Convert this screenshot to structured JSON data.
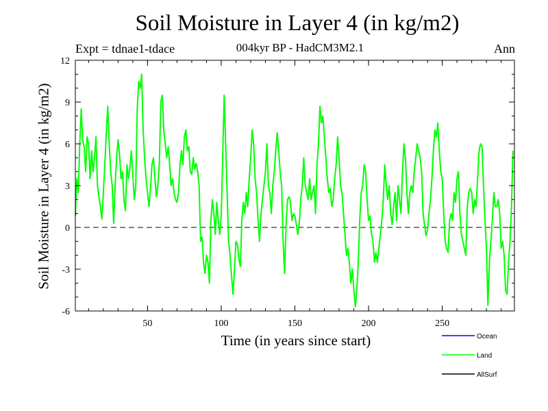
{
  "chart_data": {
    "type": "line",
    "title": "Soil Moisture in Layer 4 (in kg/m2)",
    "subtitle": "004kyr BP - HadCM3M2.1",
    "experiment": "Expt = tdnae1-tdace",
    "period": "Ann",
    "xlabel": "Time (in years since start)",
    "ylabel": "Soil Moisture in Layer 4 (in kg/m2)",
    "xlim": [
      1,
      299
    ],
    "ylim": [
      -6,
      12
    ],
    "xticks": [
      50,
      100,
      150,
      200,
      250
    ],
    "xtick_labels": [
      "50",
      "100",
      "150",
      "200",
      "250"
    ],
    "yticks": [
      -6,
      -3,
      0,
      3,
      6,
      9,
      12
    ],
    "ytick_labels": [
      "-6",
      "-3",
      "0",
      "3",
      "6",
      "9",
      "12"
    ],
    "reference_line": 0,
    "legend": [
      {
        "name": "Ocean",
        "color": "#0000ff"
      },
      {
        "name": "Land",
        "color": "#00ff00"
      },
      {
        "name": "AllSurf",
        "color": "#000000"
      }
    ],
    "series": [
      {
        "name": "Land",
        "color": "#00ff00",
        "x_start": 1,
        "x_step": 1,
        "values": [
          0.8,
          3.5,
          2.5,
          6.0,
          8.5,
          6.2,
          5.8,
          4.0,
          6.5,
          6.0,
          3.5,
          5.5,
          4.0,
          5.0,
          6.5,
          3.0,
          2.2,
          1.5,
          0.6,
          2.5,
          4.5,
          6.8,
          8.7,
          6.0,
          4.0,
          3.0,
          0.3,
          3.0,
          5.0,
          6.3,
          5.2,
          3.5,
          4.0,
          2.0,
          1.2,
          4.5,
          3.5,
          4.2,
          5.5,
          3.8,
          2.0,
          3.0,
          8.5,
          10.5,
          10.0,
          11.0,
          7.0,
          5.0,
          3.5,
          2.5,
          1.5,
          2.8,
          4.5,
          5.0,
          3.5,
          2.2,
          3.0,
          4.5,
          9.0,
          9.5,
          7.0,
          6.0,
          5.0,
          5.8,
          4.5,
          3.0,
          3.5,
          2.5,
          2.0,
          1.8,
          2.5,
          4.5,
          5.5,
          4.5,
          6.5,
          7.0,
          5.5,
          5.8,
          4.0,
          3.8,
          5.0,
          4.2,
          4.6,
          4.0,
          3.0,
          -1.0,
          -0.7,
          -2.5,
          -3.3,
          -2.0,
          -2.5,
          -4.0,
          0.5,
          2.0,
          1.0,
          -0.5,
          1.8,
          0.5,
          -0.5,
          0.8,
          5.0,
          9.5,
          6.0,
          2.5,
          -1.0,
          -2.0,
          -3.5,
          -4.8,
          -3.0,
          -1.0,
          -1.2,
          -2.3,
          -2.8,
          0.5,
          1.8,
          1.0,
          2.5,
          1.5,
          3.5,
          5.0,
          7.0,
          6.0,
          3.5,
          2.5,
          0.5,
          -1.0,
          1.0,
          2.0,
          3.0,
          4.0,
          6.0,
          3.0,
          2.5,
          1.0,
          3.0,
          4.0,
          5.5,
          6.8,
          5.5,
          4.0,
          3.0,
          -1.0,
          -3.3,
          0.2,
          2.0,
          2.2,
          1.8,
          0.5,
          1.0,
          0.8,
          0.2,
          -0.5,
          0.3,
          2.0,
          3.0,
          5.0,
          3.0,
          2.5,
          2.0,
          3.5,
          2.0,
          2.5,
          3.0,
          1.0,
          4.5,
          6.0,
          8.7,
          7.5,
          8.0,
          6.5,
          5.0,
          3.5,
          2.5,
          2.8,
          1.5,
          2.0,
          3.5,
          4.5,
          6.5,
          5.0,
          3.0,
          2.5,
          1.0,
          -0.5,
          -2.0,
          -1.5,
          -2.6,
          -4.0,
          -3.0,
          -4.5,
          -5.7,
          -4.5,
          -2.5,
          0.5,
          2.5,
          3.0,
          4.5,
          4.0,
          2.0,
          0.5,
          0.8,
          -0.5,
          -1.0,
          -2.5,
          -1.8,
          -2.5,
          -1.5,
          -0.5,
          0.5,
          2.0,
          4.5,
          3.0,
          2.0,
          3.0,
          1.0,
          0.2,
          1.5,
          2.5,
          0.5,
          3.0,
          2.0,
          1.0,
          4.0,
          6.0,
          5.0,
          2.5,
          1.0,
          2.5,
          3.0,
          2.5,
          4.0,
          5.0,
          6.0,
          5.5,
          5.0,
          4.0,
          1.0,
          0.2,
          -0.6,
          -0.2,
          1.0,
          2.0,
          3.5,
          5.5,
          7.0,
          6.5,
          7.5,
          5.5,
          4.0,
          3.5,
          1.0,
          -1.0,
          -1.5,
          -1.8,
          0.5,
          1.0,
          0.5,
          2.5,
          1.8,
          3.5,
          4.0,
          1.0,
          -0.5,
          -1.0,
          -1.5,
          -2.0,
          1.5,
          2.5,
          2.8,
          2.5,
          1.0,
          2.0,
          1.5,
          3.5,
          5.5,
          6.0,
          5.8,
          3.0,
          0.5,
          -1.5,
          -5.6,
          -2.5,
          -1.0,
          0.5,
          2.5,
          1.5,
          1.5,
          2.0,
          1.0,
          -1.5,
          -1.0,
          -2.0,
          -4.5,
          -4.8,
          -2.5,
          -1.0,
          1.5,
          5.5
        ]
      }
    ]
  }
}
